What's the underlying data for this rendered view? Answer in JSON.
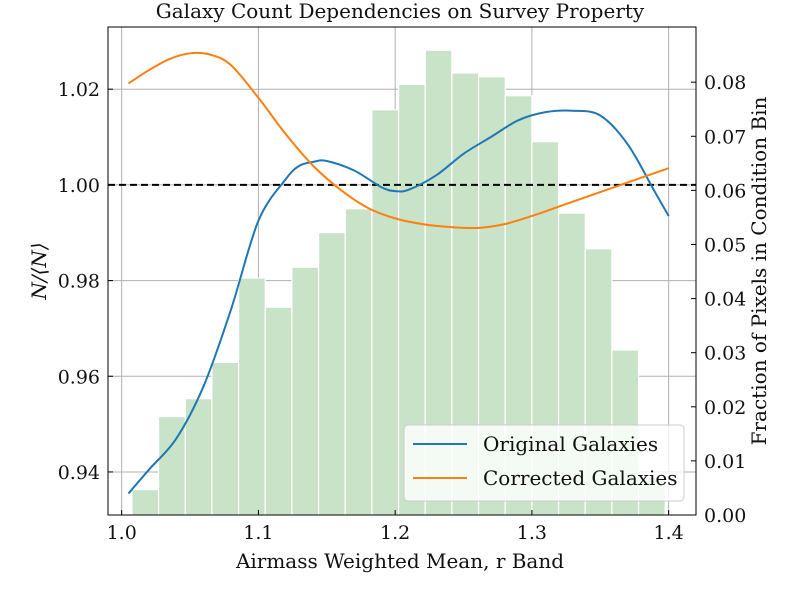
{
  "chart_data": {
    "type": "bar",
    "title": "Galaxy Count Dependencies on Survey Property",
    "xlabel": "Airmass Weighted Mean, r Band",
    "ylabel": "N/⟨N⟩",
    "y2label": "Fraction of Pixels in Condition Bin",
    "xlim": [
      0.99,
      1.42
    ],
    "ylim": [
      0.931,
      1.033
    ],
    "y2lim": [
      0.0,
      0.0902
    ],
    "xticks": [
      {
        "value": 1.0,
        "label": "1.0"
      },
      {
        "value": 1.1,
        "label": "1.1"
      },
      {
        "value": 1.2,
        "label": "1.2"
      },
      {
        "value": 1.3,
        "label": "1.3"
      },
      {
        "value": 1.4,
        "label": "1.4"
      }
    ],
    "yticks": [
      {
        "value": 0.94,
        "label": "0.94"
      },
      {
        "value": 0.96,
        "label": "0.96"
      },
      {
        "value": 0.98,
        "label": "0.98"
      },
      {
        "value": 1.0,
        "label": "1.00"
      },
      {
        "value": 1.02,
        "label": "1.02"
      }
    ],
    "y2ticks": [
      {
        "value": 0.0,
        "label": "0.00"
      },
      {
        "value": 0.01,
        "label": "0.01"
      },
      {
        "value": 0.02,
        "label": "0.02"
      },
      {
        "value": 0.03,
        "label": "0.03"
      },
      {
        "value": 0.04,
        "label": "0.04"
      },
      {
        "value": 0.05,
        "label": "0.05"
      },
      {
        "value": 0.06,
        "label": "0.06"
      },
      {
        "value": 0.07,
        "label": "0.07"
      },
      {
        "value": 0.08,
        "label": "0.08"
      }
    ],
    "grid": true,
    "reference_line": {
      "y": 1.0,
      "style": "dashed",
      "color": "#000000"
    },
    "histogram": {
      "axis": "right",
      "color": "#c8e3c8",
      "bin_edges": [
        1.0075,
        1.027,
        1.0465,
        1.066,
        1.0855,
        1.105,
        1.1245,
        1.144,
        1.1635,
        1.183,
        1.2025,
        1.222,
        1.2415,
        1.261,
        1.2805,
        1.3,
        1.3195,
        1.339,
        1.3585,
        1.378,
        1.3975
      ],
      "values": [
        0.0047,
        0.0182,
        0.0215,
        0.0282,
        0.0438,
        0.0384,
        0.0458,
        0.0522,
        0.0566,
        0.0749,
        0.0796,
        0.0859,
        0.0817,
        0.081,
        0.0775,
        0.069,
        0.0558,
        0.0492,
        0.0305,
        0.007
      ]
    },
    "series": [
      {
        "name": "Original Galaxies",
        "color": "#1f77b4",
        "x": [
          1.005,
          1.02,
          1.04,
          1.06,
          1.08,
          1.1,
          1.12,
          1.13,
          1.14,
          1.15,
          1.17,
          1.19,
          1.2,
          1.21,
          1.23,
          1.25,
          1.27,
          1.29,
          1.31,
          1.33,
          1.35,
          1.37,
          1.39,
          1.4
        ],
        "values": [
          0.9355,
          0.9405,
          0.947,
          0.958,
          0.974,
          0.9925,
          1.0012,
          1.004,
          1.0048,
          1.005,
          1.003,
          0.9995,
          0.9987,
          0.999,
          1.002,
          1.0065,
          1.01,
          1.0135,
          1.0152,
          1.0155,
          1.0145,
          1.0085,
          0.9985,
          0.9935
        ]
      },
      {
        "name": "Corrected Galaxies",
        "color": "#ff7f0e",
        "x": [
          1.005,
          1.02,
          1.035,
          1.05,
          1.065,
          1.08,
          1.1,
          1.12,
          1.14,
          1.16,
          1.18,
          1.2,
          1.22,
          1.24,
          1.26,
          1.28,
          1.3,
          1.32,
          1.34,
          1.36,
          1.38,
          1.4
        ],
        "values": [
          1.0212,
          1.024,
          1.0263,
          1.0275,
          1.0272,
          1.025,
          1.0182,
          1.0106,
          1.004,
          0.999,
          0.9952,
          0.993,
          0.9918,
          0.9912,
          0.991,
          0.9918,
          0.9935,
          0.9955,
          0.9975,
          0.9995,
          1.0015,
          1.0035
        ]
      }
    ],
    "legend": {
      "position": "bottom-right"
    }
  }
}
